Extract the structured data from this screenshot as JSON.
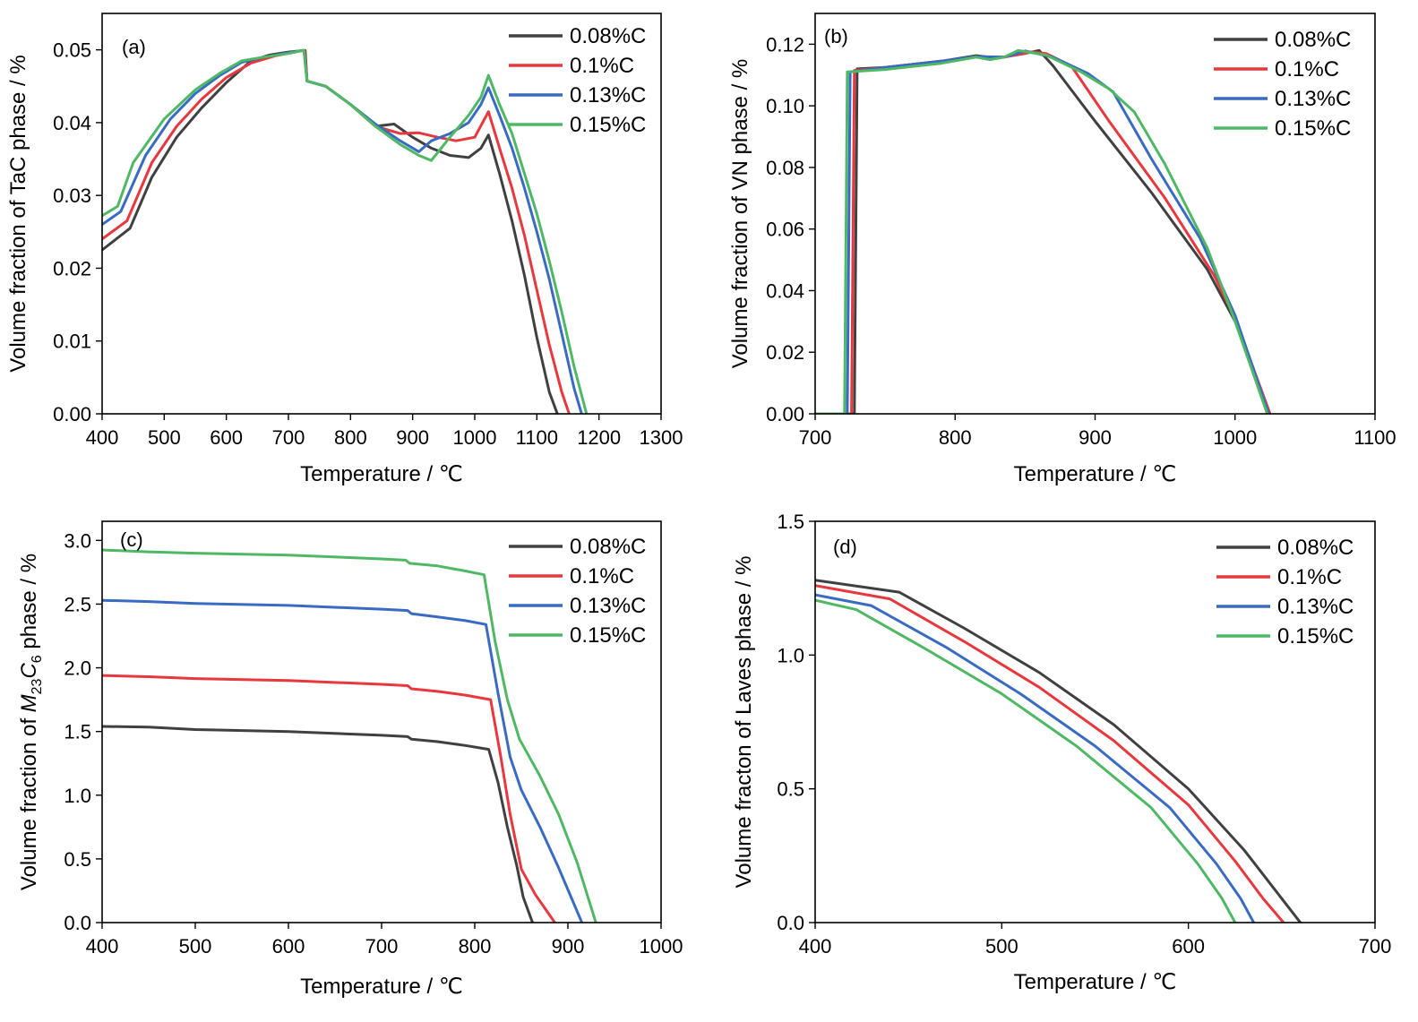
{
  "colors": {
    "0.08%C": "#404040",
    "0.1%C": "#e8383d",
    "0.13%C": "#3a6bc2",
    "0.15%C": "#4fb865"
  },
  "chart_data": [
    {
      "type": "line",
      "panel_label": "(a)",
      "xlabel": "Temperature / ℃",
      "ylabel": "Volume fraction of TaC phase / %",
      "xlim": [
        400,
        1300
      ],
      "ylim": [
        0,
        0.055
      ],
      "xticks": [
        400,
        500,
        600,
        700,
        800,
        900,
        1000,
        1100,
        1200,
        1300
      ],
      "yticks": [
        0.0,
        0.01,
        0.02,
        0.03,
        0.04,
        0.05
      ],
      "ytick_labels": [
        "0.00",
        "0.01",
        "0.02",
        "0.03",
        "0.04",
        "0.05"
      ],
      "legend_position": "top-right",
      "series": [
        {
          "name": "0.08%C",
          "x": [
            400,
            445,
            480,
            520,
            560,
            600,
            640,
            670,
            700,
            725,
            727,
            730,
            760,
            800,
            840,
            870,
            900,
            930,
            960,
            990,
            1010,
            1022,
            1040,
            1060,
            1080,
            1100,
            1120,
            1133
          ],
          "y": [
            0.0225,
            0.0255,
            0.0325,
            0.038,
            0.042,
            0.0455,
            0.0485,
            0.0493,
            0.0497,
            0.0499,
            0.0499,
            0.0457,
            0.045,
            0.0425,
            0.0395,
            0.0398,
            0.038,
            0.0365,
            0.0355,
            0.0352,
            0.0365,
            0.0383,
            0.033,
            0.0265,
            0.019,
            0.0105,
            0.003,
            0
          ]
        },
        {
          "name": "0.1%C",
          "x": [
            400,
            440,
            480,
            520,
            560,
            600,
            640,
            680,
            710,
            723,
            726,
            730,
            760,
            800,
            840,
            880,
            910,
            940,
            970,
            1000,
            1022,
            1040,
            1060,
            1080,
            1100,
            1120,
            1140,
            1152
          ],
          "y": [
            0.024,
            0.0265,
            0.0345,
            0.0395,
            0.0432,
            0.0462,
            0.0482,
            0.0492,
            0.0497,
            0.0499,
            0.0499,
            0.0457,
            0.045,
            0.0425,
            0.0395,
            0.0385,
            0.0386,
            0.038,
            0.0375,
            0.038,
            0.0415,
            0.0365,
            0.031,
            0.0245,
            0.017,
            0.0095,
            0.003,
            0
          ]
        },
        {
          "name": "0.13%C",
          "x": [
            400,
            430,
            470,
            510,
            550,
            590,
            625,
            660,
            700,
            722,
            725,
            730,
            760,
            800,
            840,
            880,
            910,
            930,
            960,
            990,
            1010,
            1022,
            1040,
            1060,
            1080,
            1100,
            1120,
            1140,
            1160,
            1172
          ],
          "y": [
            0.026,
            0.0278,
            0.0355,
            0.0405,
            0.044,
            0.0465,
            0.0483,
            0.049,
            0.0496,
            0.0499,
            0.0499,
            0.0457,
            0.045,
            0.0425,
            0.0398,
            0.0375,
            0.036,
            0.0375,
            0.0385,
            0.04,
            0.0425,
            0.0448,
            0.041,
            0.0365,
            0.031,
            0.025,
            0.0185,
            0.011,
            0.0035,
            0
          ]
        },
        {
          "name": "0.15%C",
          "x": [
            400,
            425,
            450,
            500,
            550,
            590,
            625,
            660,
            700,
            722,
            725,
            730,
            760,
            800,
            840,
            880,
            910,
            930,
            960,
            990,
            1010,
            1022,
            1040,
            1060,
            1080,
            1100,
            1120,
            1140,
            1160,
            1180
          ],
          "y": [
            0.0272,
            0.0285,
            0.0345,
            0.0405,
            0.0445,
            0.0468,
            0.0485,
            0.049,
            0.0495,
            0.0499,
            0.0499,
            0.0457,
            0.045,
            0.0425,
            0.0395,
            0.037,
            0.0355,
            0.0348,
            0.038,
            0.041,
            0.0435,
            0.0465,
            0.0425,
            0.0385,
            0.033,
            0.0275,
            0.021,
            0.014,
            0.0065,
            0
          ]
        }
      ]
    },
    {
      "type": "line",
      "panel_label": "(b)",
      "xlabel": "Temperature / ℃",
      "ylabel": "Volume fraction of VN phase / %",
      "xlim": [
        700,
        1100
      ],
      "ylim": [
        0,
        0.13
      ],
      "xticks": [
        700,
        800,
        900,
        1000,
        1100
      ],
      "yticks": [
        0.0,
        0.02,
        0.04,
        0.06,
        0.08,
        0.1,
        0.12
      ],
      "ytick_labels": [
        "0.00",
        "0.02",
        "0.04",
        "0.06",
        "0.08",
        "0.10",
        "0.12"
      ],
      "legend_position": "top-right",
      "series": [
        {
          "name": "0.08%C",
          "x": [
            700,
            728,
            730,
            750,
            790,
            815,
            830,
            850,
            860,
            870,
            900,
            940,
            980,
            1000,
            1025
          ],
          "y": [
            0,
            0,
            0.112,
            0.1125,
            0.1145,
            0.1163,
            0.1155,
            0.117,
            0.118,
            0.113,
            0.095,
            0.072,
            0.047,
            0.03,
            0
          ]
        },
        {
          "name": "0.1%C",
          "x": [
            700,
            726,
            728,
            750,
            790,
            815,
            835,
            855,
            865,
            883,
            910,
            950,
            985,
            1000,
            1025
          ],
          "y": [
            0,
            0,
            0.1115,
            0.1125,
            0.1145,
            0.1158,
            0.1158,
            0.1175,
            0.117,
            0.113,
            0.095,
            0.07,
            0.045,
            0.031,
            0
          ]
        },
        {
          "name": "0.13%C",
          "x": [
            700,
            723,
            725,
            750,
            790,
            815,
            835,
            850,
            870,
            895,
            913,
            940,
            975,
            1000,
            1024
          ],
          "y": [
            0,
            0,
            0.111,
            0.1125,
            0.1145,
            0.116,
            0.1158,
            0.1178,
            0.1158,
            0.1105,
            0.1045,
            0.083,
            0.057,
            0.032,
            0
          ]
        },
        {
          "name": "0.15%C",
          "x": [
            700,
            721,
            723,
            750,
            790,
            815,
            825,
            835,
            845,
            865,
            890,
            910,
            928,
            950,
            980,
            1000,
            1023
          ],
          "y": [
            0,
            0,
            0.111,
            0.1118,
            0.1138,
            0.1158,
            0.115,
            0.1158,
            0.118,
            0.1165,
            0.111,
            0.1055,
            0.098,
            0.081,
            0.054,
            0.03,
            0
          ]
        }
      ]
    },
    {
      "type": "line",
      "panel_label": "(c)",
      "xlabel": "Temperature / ℃",
      "ylabel_parts": [
        "Volume fraction of ",
        "M",
        "23",
        "C",
        "6",
        " phase / %"
      ],
      "xlim": [
        400,
        1000
      ],
      "ylim": [
        0,
        3.15
      ],
      "xticks": [
        400,
        500,
        600,
        700,
        800,
        900,
        1000
      ],
      "yticks": [
        0.0,
        0.5,
        1.0,
        1.5,
        2.0,
        2.5,
        3.0
      ],
      "ytick_labels": [
        "0.0",
        "0.5",
        "1.0",
        "1.5",
        "2.0",
        "2.5",
        "3.0"
      ],
      "legend_position": "top-right",
      "series": [
        {
          "name": "0.08%C",
          "x": [
            400,
            450,
            500,
            600,
            700,
            728,
            732,
            760,
            790,
            815,
            825,
            835,
            845,
            852,
            862
          ],
          "y": [
            1.54,
            1.535,
            1.515,
            1.5,
            1.47,
            1.46,
            1.44,
            1.42,
            1.39,
            1.36,
            1.1,
            0.75,
            0.45,
            0.2,
            0
          ]
        },
        {
          "name": "0.1%C",
          "x": [
            400,
            450,
            500,
            600,
            700,
            728,
            732,
            760,
            790,
            817,
            828,
            838,
            850,
            865,
            886
          ],
          "y": [
            1.94,
            1.93,
            1.915,
            1.9,
            1.87,
            1.86,
            1.835,
            1.815,
            1.785,
            1.75,
            1.3,
            0.85,
            0.42,
            0.22,
            0
          ]
        },
        {
          "name": "0.13%C",
          "x": [
            400,
            450,
            500,
            600,
            700,
            728,
            732,
            760,
            790,
            812,
            825,
            838,
            850,
            870,
            890,
            915
          ],
          "y": [
            2.53,
            2.52,
            2.505,
            2.49,
            2.46,
            2.45,
            2.425,
            2.4,
            2.37,
            2.34,
            1.8,
            1.3,
            1.04,
            0.75,
            0.43,
            0
          ]
        },
        {
          "name": "0.15%C",
          "x": [
            400,
            450,
            500,
            600,
            700,
            726,
            730,
            760,
            790,
            810,
            822,
            835,
            848,
            870,
            890,
            910,
            930
          ],
          "y": [
            2.925,
            2.91,
            2.9,
            2.885,
            2.855,
            2.845,
            2.82,
            2.8,
            2.76,
            2.73,
            2.2,
            1.75,
            1.44,
            1.15,
            0.85,
            0.47,
            0
          ]
        }
      ]
    },
    {
      "type": "line",
      "panel_label": "(d)",
      "xlabel": "Temperature / ℃",
      "ylabel": "Volume fracton of Laves phase / %",
      "xlim": [
        400,
        700
      ],
      "ylim": [
        0,
        1.5
      ],
      "xticks": [
        400,
        500,
        600,
        700
      ],
      "yticks": [
        0.0,
        0.5,
        1.0,
        1.5
      ],
      "ytick_labels": [
        "0.0",
        "0.5",
        "1.0",
        "1.5"
      ],
      "legend_position": "top-right",
      "series": [
        {
          "name": "0.08%C",
          "x": [
            400,
            445,
            480,
            520,
            560,
            600,
            630,
            650,
            660
          ],
          "y": [
            1.28,
            1.235,
            1.1,
            0.935,
            0.74,
            0.5,
            0.27,
            0.09,
            0
          ]
        },
        {
          "name": "0.1%C",
          "x": [
            400,
            440,
            480,
            520,
            560,
            600,
            625,
            640,
            651
          ],
          "y": [
            1.26,
            1.21,
            1.05,
            0.88,
            0.68,
            0.44,
            0.23,
            0.09,
            0
          ]
        },
        {
          "name": "0.13%C",
          "x": [
            400,
            430,
            470,
            510,
            550,
            590,
            615,
            628,
            635
          ],
          "y": [
            1.225,
            1.185,
            1.03,
            0.855,
            0.66,
            0.43,
            0.22,
            0.09,
            0
          ]
        },
        {
          "name": "0.15%C",
          "x": [
            400,
            422,
            460,
            500,
            540,
            580,
            605,
            618,
            625
          ],
          "y": [
            1.205,
            1.17,
            1.02,
            0.855,
            0.66,
            0.43,
            0.22,
            0.09,
            0
          ]
        }
      ]
    }
  ]
}
